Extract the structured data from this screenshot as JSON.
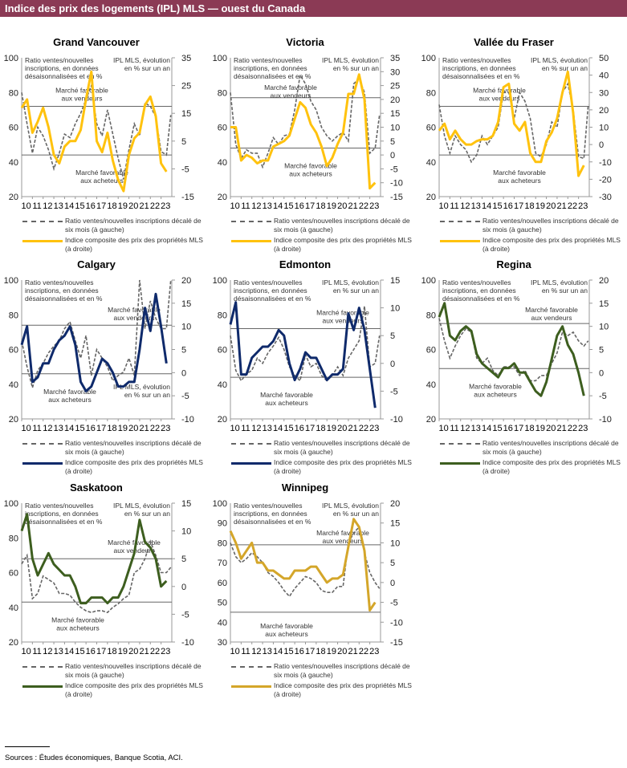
{
  "header": {
    "title": "Indice des prix des logements (IPL) MLS — ouest du Canada"
  },
  "footer": {
    "sources": "Sources : Études économiques, Banque Scotia, ACI."
  },
  "legend": {
    "ratio": "Ratio ventes/nouvelles inscriptions décalé de six mois (à gauche)",
    "price": "Indice composite des prix des propriétés MLS (à droite)"
  },
  "labels": {
    "ratio_axis": "Ratio ventes/nouvelles inscriptions, en données désaisonnalisées et en %",
    "ipl_axis": "IPL MLS, évolution en % sur un an",
    "sellers": "Marché favorable aux vendeurs",
    "buyers": "Marché favorable aux acheteurs"
  },
  "x_ticks": [
    "10",
    "11",
    "12",
    "13",
    "14",
    "15",
    "16",
    "17",
    "18",
    "19",
    "20",
    "21",
    "22",
    "23"
  ],
  "chart_data": [
    {
      "type": "line",
      "title": "Grand Vancouver",
      "color": "#ffc20e",
      "ylim_left": [
        20,
        100
      ],
      "yticks_left": [
        20,
        40,
        60,
        80,
        100
      ],
      "ylim_right": [
        -15,
        35
      ],
      "yticks_right": [
        -15,
        -5,
        5,
        15,
        25,
        35
      ],
      "thresholds_left": [
        72,
        44
      ],
      "x": [
        2010,
        2010.5,
        2011,
        2011.5,
        2012,
        2012.5,
        2013,
        2013.5,
        2014,
        2014.5,
        2015,
        2015.5,
        2016,
        2016.5,
        2017,
        2017.5,
        2018,
        2018.5,
        2019,
        2019.5,
        2020,
        2020.5,
        2021,
        2021.5,
        2022,
        2022.5,
        2023,
        2023.5,
        2023.9
      ],
      "ratio": [
        80,
        62,
        45,
        60,
        55,
        47,
        36,
        45,
        56,
        54,
        62,
        68,
        76,
        84,
        62,
        55,
        70,
        56,
        42,
        30,
        47,
        62,
        55,
        74,
        72,
        66,
        46,
        44,
        67
      ],
      "price": [
        17,
        20,
        8,
        12,
        17,
        10,
        0,
        -3,
        3,
        5,
        5,
        9,
        20,
        30,
        5,
        1,
        8,
        -2,
        -9,
        -13,
        0,
        6,
        8,
        18,
        21,
        14,
        -3,
        -6,
        null
      ]
    },
    {
      "type": "line",
      "title": "Victoria",
      "color": "#ffc20e",
      "ylim_left": [
        20,
        100
      ],
      "yticks_left": [
        20,
        40,
        60,
        80,
        100
      ],
      "ylim_right": [
        -15,
        35
      ],
      "yticks_right": [
        -15,
        -10,
        -5,
        0,
        5,
        10,
        15,
        20,
        25,
        30,
        35
      ],
      "thresholds_left": [
        77,
        48
      ],
      "x": [
        2010,
        2010.5,
        2011,
        2011.5,
        2012,
        2012.5,
        2013,
        2013.5,
        2014,
        2014.5,
        2015,
        2015.5,
        2016,
        2016.5,
        2017,
        2017.5,
        2018,
        2018.5,
        2019,
        2019.5,
        2020,
        2020.5,
        2021,
        2021.5,
        2022,
        2022.5,
        2023,
        2023.5,
        2023.9
      ],
      "ratio": [
        80,
        50,
        42,
        47,
        45,
        45,
        37,
        45,
        54,
        50,
        55,
        56,
        70,
        90,
        85,
        75,
        70,
        60,
        55,
        52,
        55,
        57,
        52,
        85,
        88,
        80,
        45,
        48,
        67
      ],
      "price": [
        10,
        10,
        -2,
        0,
        -1,
        -3,
        -2,
        -2,
        3,
        4,
        5,
        7,
        13,
        19,
        17,
        11,
        8,
        3,
        -4,
        -1,
        4,
        8,
        22,
        22,
        29,
        20,
        -12,
        -10,
        null
      ]
    },
    {
      "type": "line",
      "title": "Vallée du Fraser",
      "color": "#ffc20e",
      "ylim_left": [
        20,
        100
      ],
      "yticks_left": [
        20,
        40,
        60,
        80,
        100
      ],
      "ylim_right": [
        -30,
        50
      ],
      "yticks_right": [
        -30,
        -20,
        -10,
        0,
        10,
        20,
        30,
        40,
        50
      ],
      "thresholds_left": [
        72,
        44
      ],
      "x": [
        2010,
        2010.5,
        2011,
        2011.5,
        2012,
        2012.5,
        2013,
        2013.5,
        2014,
        2014.5,
        2015,
        2015.5,
        2016,
        2016.5,
        2017,
        2017.5,
        2018,
        2018.5,
        2019,
        2019.5,
        2020,
        2020.5,
        2021,
        2021.5,
        2022,
        2022.5,
        2023,
        2023.5,
        2023.9
      ],
      "ratio": [
        73,
        55,
        45,
        55,
        50,
        47,
        40,
        44,
        55,
        50,
        55,
        60,
        80,
        80,
        65,
        80,
        75,
        65,
        45,
        43,
        50,
        63,
        60,
        80,
        85,
        70,
        43,
        42,
        73
      ],
      "price": [
        8,
        12,
        3,
        8,
        3,
        0,
        0,
        2,
        3,
        3,
        5,
        13,
        33,
        35,
        12,
        8,
        13,
        -5,
        -10,
        -10,
        2,
        7,
        15,
        30,
        42,
        18,
        -18,
        -12,
        null
      ]
    },
    {
      "type": "line",
      "title": "Calgary",
      "color": "#0f2a6b",
      "ylim_left": [
        20,
        100
      ],
      "yticks_left": [
        20,
        40,
        60,
        80,
        100
      ],
      "ylim_right": [
        -10,
        20
      ],
      "yticks_right": [
        -10,
        -5,
        0,
        5,
        10,
        15,
        20
      ],
      "thresholds_left": [
        74,
        46
      ],
      "x": [
        2010,
        2010.5,
        2011,
        2011.5,
        2012,
        2012.5,
        2013,
        2013.5,
        2014,
        2014.5,
        2015,
        2015.5,
        2016,
        2016.5,
        2017,
        2017.5,
        2018,
        2018.5,
        2019,
        2019.5,
        2020,
        2020.5,
        2021,
        2021.5,
        2022,
        2022.5,
        2023,
        2023.5,
        2023.9
      ],
      "ratio": [
        65,
        50,
        38,
        48,
        52,
        58,
        62,
        65,
        72,
        76,
        65,
        55,
        68,
        45,
        60,
        55,
        50,
        42,
        45,
        47,
        55,
        45,
        100,
        72,
        88,
        78,
        72,
        72,
        100
      ],
      "price": [
        6,
        10,
        -2,
        -1,
        2,
        2,
        5,
        7,
        8,
        10,
        6,
        -2,
        -4,
        -3,
        0,
        3,
        2,
        0,
        -3,
        -3,
        -2,
        -2,
        5,
        14,
        9,
        17,
        10,
        2,
        null
      ]
    },
    {
      "type": "line",
      "title": "Edmonton",
      "color": "#0f2a6b",
      "ylim_left": [
        20,
        100
      ],
      "yticks_left": [
        20,
        40,
        60,
        80,
        100
      ],
      "ylim_right": [
        -10,
        15
      ],
      "yticks_right": [
        -10,
        -5,
        0,
        5,
        10,
        15
      ],
      "thresholds_left": [
        72,
        44
      ],
      "x": [
        2010,
        2010.5,
        2011,
        2011.5,
        2012,
        2012.5,
        2013,
        2013.5,
        2014,
        2014.5,
        2015,
        2015.5,
        2016,
        2016.5,
        2017,
        2017.5,
        2018,
        2018.5,
        2019,
        2019.5,
        2020,
        2020.5,
        2021,
        2021.5,
        2022,
        2022.5,
        2023,
        2023.5,
        2023.9
      ],
      "ratio": [
        68,
        48,
        42,
        46,
        48,
        55,
        52,
        58,
        62,
        67,
        60,
        50,
        45,
        42,
        57,
        50,
        52,
        45,
        42,
        45,
        50,
        45,
        55,
        60,
        65,
        85,
        50,
        52,
        68
      ],
      "price": [
        7,
        11,
        -2,
        -2,
        1,
        2,
        3,
        3,
        4,
        6,
        5,
        0,
        -3,
        -1,
        2,
        1,
        1,
        -1,
        -3,
        -2,
        -2,
        -1,
        9,
        6,
        10,
        6,
        -1,
        -8,
        null
      ]
    },
    {
      "type": "line",
      "title": "Regina",
      "color": "#3d5e1f",
      "ylim_left": [
        20,
        100
      ],
      "yticks_left": [
        20,
        40,
        60,
        80,
        100
      ],
      "ylim_right": [
        -10,
        20
      ],
      "yticks_right": [
        -10,
        -5,
        0,
        5,
        10,
        15,
        20
      ],
      "thresholds_left": [
        75,
        49
      ],
      "x": [
        2010,
        2010.5,
        2011,
        2011.5,
        2012,
        2012.5,
        2013,
        2013.5,
        2014,
        2014.5,
        2015,
        2015.5,
        2016,
        2016.5,
        2017,
        2017.5,
        2018,
        2018.5,
        2019,
        2019.5,
        2020,
        2020.5,
        2021,
        2021.5,
        2022,
        2022.5,
        2023,
        2023.5,
        2023.9
      ],
      "ratio": [
        78,
        65,
        55,
        62,
        68,
        72,
        70,
        55,
        52,
        55,
        48,
        45,
        50,
        50,
        50,
        45,
        48,
        42,
        42,
        45,
        45,
        52,
        58,
        70,
        68,
        70,
        65,
        62,
        65
      ],
      "price": [
        12,
        15,
        8,
        7,
        9,
        10,
        9,
        4,
        2,
        1,
        0,
        -1,
        1,
        1,
        2,
        0,
        0,
        -2,
        -4,
        -5,
        -2,
        3,
        8,
        10,
        6,
        4,
        0,
        -5,
        null
      ]
    },
    {
      "type": "line",
      "title": "Saskatoon",
      "color": "#3d5e1f",
      "ylim_left": [
        20,
        100
      ],
      "yticks_left": [
        20,
        40,
        60,
        80,
        100
      ],
      "ylim_right": [
        -10,
        15
      ],
      "yticks_right": [
        -10,
        -5,
        0,
        5,
        10,
        15
      ],
      "thresholds_left": [
        68,
        43
      ],
      "x": [
        2010,
        2010.5,
        2011,
        2011.5,
        2012,
        2012.5,
        2013,
        2013.5,
        2014,
        2014.5,
        2015,
        2015.5,
        2016,
        2016.5,
        2017,
        2017.5,
        2018,
        2018.5,
        2019,
        2019.5,
        2020,
        2020.5,
        2021,
        2021.5,
        2022,
        2022.5,
        2023,
        2023.5,
        2023.9
      ],
      "ratio": [
        65,
        70,
        45,
        48,
        58,
        56,
        54,
        48,
        48,
        47,
        43,
        40,
        38,
        37,
        38,
        38,
        37,
        40,
        42,
        45,
        47,
        60,
        62,
        68,
        78,
        70,
        60,
        60,
        63
      ],
      "price": [
        10,
        13,
        5,
        2,
        4,
        6,
        4,
        3,
        2,
        2,
        0,
        -3,
        -3,
        -2,
        -2,
        -2,
        -3,
        -2,
        -2,
        0,
        3,
        6,
        12,
        8,
        7,
        5,
        0,
        1,
        null
      ]
    },
    {
      "type": "line",
      "title": "Winnipeg",
      "color": "#d4a62a",
      "ylim_left": [
        30,
        100
      ],
      "yticks_left": [
        30,
        40,
        50,
        60,
        70,
        80,
        90,
        100
      ],
      "ylim_right": [
        -15,
        20
      ],
      "yticks_right": [
        -15,
        -10,
        -5,
        0,
        5,
        10,
        15,
        20
      ],
      "thresholds_left": [
        79,
        45
      ],
      "x": [
        2010,
        2010.5,
        2011,
        2011.5,
        2012,
        2012.5,
        2013,
        2013.5,
        2014,
        2014.5,
        2015,
        2015.5,
        2016,
        2016.5,
        2017,
        2017.5,
        2018,
        2018.5,
        2019,
        2019.5,
        2020,
        2020.5,
        2021,
        2021.5,
        2022,
        2022.5,
        2023,
        2023.5,
        2023.9
      ],
      "ratio": [
        80,
        73,
        70,
        72,
        75,
        73,
        70,
        65,
        63,
        60,
        56,
        53,
        57,
        60,
        63,
        62,
        60,
        56,
        55,
        55,
        58,
        58,
        80,
        85,
        88,
        75,
        65,
        60,
        57
      ],
      "price": [
        13,
        10,
        6,
        8,
        10,
        5,
        5,
        3,
        3,
        2,
        1,
        1,
        3,
        3,
        3,
        4,
        4,
        2,
        0,
        1,
        1,
        2,
        9,
        16,
        14,
        8,
        -7,
        -5,
        null
      ]
    }
  ]
}
